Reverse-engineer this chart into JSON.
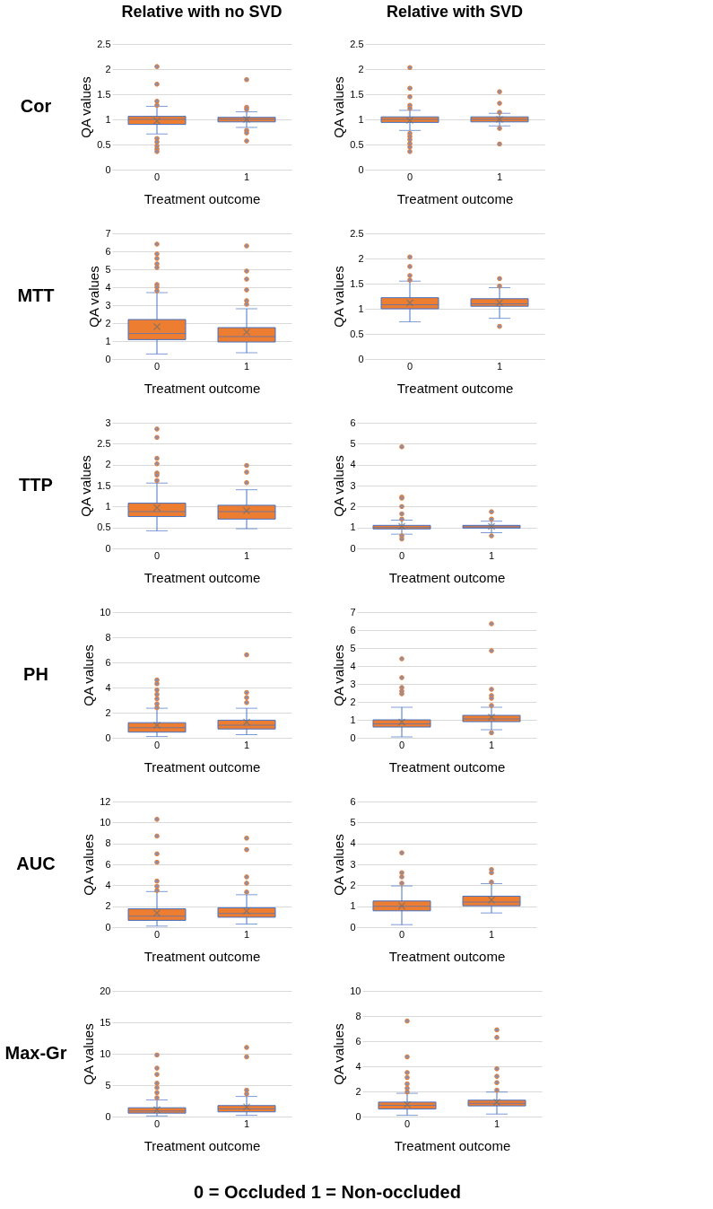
{
  "chart_data": [
    {
      "type": "box",
      "title": "Relative with no SVD",
      "annotations": [
        "Cor"
      ],
      "xlabel": "Treatment outcome",
      "ylabel": "QA values",
      "categories": [
        "0",
        "1"
      ],
      "color": "#ed7d31",
      "ylim": [
        0,
        2.5
      ],
      "yticks": [
        0,
        0.5,
        1,
        1.5,
        2,
        2.5
      ],
      "grid": "y",
      "boxes": [
        {
          "low": 0.71,
          "q1": 0.9,
          "median": 1.0,
          "q3": 1.06,
          "high": 1.26,
          "mean": 0.97,
          "outliers": [
            2.05,
            1.7,
            1.36,
            1.28,
            0.62,
            0.55,
            0.47,
            0.41,
            0.36
          ]
        },
        {
          "low": 0.84,
          "q1": 0.95,
          "median": 1.0,
          "q3": 1.04,
          "high": 1.15,
          "mean": 1.0,
          "outliers": [
            1.79,
            1.24,
            1.2,
            0.78,
            0.73,
            0.57
          ]
        }
      ]
    },
    {
      "type": "box",
      "title": "Relative with SVD",
      "xlabel": "Treatment outcome",
      "ylabel": "QA values",
      "categories": [
        "0",
        "1"
      ],
      "color": "#ed7d31",
      "ylim": [
        0,
        2.5
      ],
      "yticks": [
        0,
        0.5,
        1,
        1.5,
        2,
        2.5
      ],
      "grid": "y",
      "boxes": [
        {
          "low": 0.78,
          "q1": 0.94,
          "median": 1.0,
          "q3": 1.05,
          "high": 1.18,
          "mean": 0.98,
          "outliers": [
            2.03,
            1.62,
            1.45,
            1.28,
            1.22,
            0.72,
            0.66,
            0.6,
            0.52,
            0.45,
            0.36
          ]
        },
        {
          "low": 0.87,
          "q1": 0.95,
          "median": 1.0,
          "q3": 1.05,
          "high": 1.12,
          "mean": 1.0,
          "outliers": [
            1.55,
            1.32,
            1.14,
            0.82,
            0.51
          ]
        }
      ]
    },
    {
      "type": "box",
      "annotations": [
        "MTT"
      ],
      "xlabel": "Treatment outcome",
      "ylabel": "QA values",
      "categories": [
        "0",
        "1"
      ],
      "color": "#ed7d31",
      "ylim": [
        0,
        7
      ],
      "yticks": [
        0,
        1,
        2,
        3,
        4,
        5,
        6,
        7
      ],
      "grid": "y",
      "boxes": [
        {
          "low": 0.28,
          "q1": 1.08,
          "median": 1.42,
          "q3": 2.2,
          "high": 3.7,
          "mean": 1.8,
          "outliers": [
            6.4,
            5.85,
            5.6,
            5.3,
            5.1,
            4.15,
            4.0,
            3.8
          ]
        },
        {
          "low": 0.35,
          "q1": 0.95,
          "median": 1.25,
          "q3": 1.75,
          "high": 2.8,
          "mean": 1.5,
          "outliers": [
            6.3,
            4.9,
            4.45,
            3.85,
            3.25,
            3.05
          ]
        }
      ]
    },
    {
      "type": "box",
      "xlabel": "Treatment outcome",
      "ylabel": "QA values",
      "categories": [
        "0",
        "1"
      ],
      "color": "#ed7d31",
      "ylim": [
        0,
        2.5
      ],
      "yticks": [
        0,
        0.5,
        1,
        1.5,
        2,
        2.5
      ],
      "grid": "y",
      "boxes": [
        {
          "low": 0.74,
          "q1": 1.0,
          "median": 1.08,
          "q3": 1.22,
          "high": 1.55,
          "mean": 1.12,
          "outliers": [
            2.03,
            1.84,
            1.66,
            1.57
          ]
        },
        {
          "low": 0.81,
          "q1": 1.05,
          "median": 1.1,
          "q3": 1.2,
          "high": 1.42,
          "mean": 1.12,
          "outliers": [
            1.6,
            1.45,
            0.65
          ]
        }
      ]
    },
    {
      "type": "box",
      "annotations": [
        "TTP"
      ],
      "xlabel": "Treatment outcome",
      "ylabel": "QA values",
      "categories": [
        "0",
        "1"
      ],
      "color": "#ed7d31",
      "ylim": [
        0,
        3
      ],
      "yticks": [
        0,
        0.5,
        1,
        1.5,
        2,
        2.5,
        3
      ],
      "grid": "y",
      "boxes": [
        {
          "low": 0.42,
          "q1": 0.76,
          "median": 0.88,
          "q3": 1.08,
          "high": 1.56,
          "mean": 0.97,
          "outliers": [
            2.85,
            2.65,
            2.15,
            2.02,
            1.8,
            1.75,
            1.62
          ]
        },
        {
          "low": 0.47,
          "q1": 0.7,
          "median": 0.88,
          "q3": 1.03,
          "high": 1.4,
          "mean": 0.9,
          "outliers": [
            1.98,
            1.82,
            1.57
          ]
        }
      ]
    },
    {
      "type": "box",
      "xlabel": "Treatment outcome",
      "ylabel": "QA values",
      "categories": [
        "0",
        "1"
      ],
      "color": "#ed7d31",
      "ylim": [
        0,
        6
      ],
      "yticks": [
        0,
        1,
        2,
        3,
        4,
        5,
        6
      ],
      "grid": "y",
      "boxes": [
        {
          "low": 0.68,
          "q1": 0.93,
          "median": 1.0,
          "q3": 1.1,
          "high": 1.35,
          "mean": 1.05,
          "outliers": [
            4.85,
            2.45,
            2.4,
            2.0,
            1.65,
            1.4,
            0.6,
            0.45
          ]
        },
        {
          "low": 0.75,
          "q1": 0.97,
          "median": 1.03,
          "q3": 1.1,
          "high": 1.3,
          "mean": 1.05,
          "outliers": [
            1.75,
            1.4,
            0.6
          ]
        }
      ]
    },
    {
      "type": "box",
      "annotations": [
        "PH"
      ],
      "xlabel": "Treatment outcome",
      "ylabel": "QA values",
      "categories": [
        "0",
        "1"
      ],
      "color": "#ed7d31",
      "ylim": [
        0,
        10
      ],
      "yticks": [
        0,
        2,
        4,
        6,
        8,
        10
      ],
      "grid": "y",
      "boxes": [
        {
          "low": 0.1,
          "q1": 0.45,
          "median": 0.8,
          "q3": 1.2,
          "high": 2.35,
          "mean": 1.0,
          "outliers": [
            4.6,
            4.3,
            3.8,
            3.45,
            3.1,
            2.7,
            2.4
          ]
        },
        {
          "low": 0.25,
          "q1": 0.7,
          "median": 1.0,
          "q3": 1.4,
          "high": 2.35,
          "mean": 1.25,
          "outliers": [
            6.6,
            3.6,
            3.2,
            2.8
          ]
        }
      ]
    },
    {
      "type": "box",
      "xlabel": "Treatment outcome",
      "ylabel": "QA values",
      "categories": [
        "0",
        "1"
      ],
      "color": "#ed7d31",
      "ylim": [
        0,
        7
      ],
      "yticks": [
        0,
        1,
        2,
        3,
        4,
        5,
        6,
        7
      ],
      "grid": "y",
      "boxes": [
        {
          "low": 0.05,
          "q1": 0.6,
          "median": 0.78,
          "q3": 1.0,
          "high": 1.7,
          "mean": 0.88,
          "outliers": [
            4.4,
            3.35,
            2.8,
            2.6,
            2.45
          ]
        },
        {
          "low": 0.45,
          "q1": 0.9,
          "median": 1.05,
          "q3": 1.25,
          "high": 1.7,
          "mean": 1.15,
          "outliers": [
            6.35,
            4.85,
            2.7,
            2.35,
            2.2,
            1.8,
            0.28
          ]
        }
      ]
    },
    {
      "type": "box",
      "annotations": [
        "AUC"
      ],
      "xlabel": "Treatment outcome",
      "ylabel": "QA values",
      "categories": [
        "0",
        "1"
      ],
      "color": "#ed7d31",
      "ylim": [
        0,
        12
      ],
      "yticks": [
        0,
        2,
        4,
        6,
        8,
        10,
        12
      ],
      "grid": "y",
      "boxes": [
        {
          "low": 0.1,
          "q1": 0.65,
          "median": 1.05,
          "q3": 1.75,
          "high": 3.4,
          "mean": 1.35,
          "outliers": [
            10.3,
            8.7,
            7.0,
            6.2,
            4.4,
            3.9,
            3.5
          ]
        },
        {
          "low": 0.3,
          "q1": 0.95,
          "median": 1.3,
          "q3": 1.85,
          "high": 3.1,
          "mean": 1.55,
          "outliers": [
            8.5,
            7.4,
            4.8,
            4.2,
            3.35
          ]
        }
      ]
    },
    {
      "type": "box",
      "xlabel": "Treatment outcome",
      "ylabel": "QA values",
      "categories": [
        "0",
        "1"
      ],
      "color": "#ed7d31",
      "ylim": [
        0,
        6
      ],
      "yticks": [
        0,
        1,
        2,
        3,
        4,
        5,
        6
      ],
      "grid": "y",
      "boxes": [
        {
          "low": 0.12,
          "q1": 0.78,
          "median": 1.0,
          "q3": 1.25,
          "high": 1.97,
          "mean": 1.02,
          "outliers": [
            3.55,
            2.6,
            2.4,
            2.1
          ]
        },
        {
          "low": 0.68,
          "q1": 1.02,
          "median": 1.2,
          "q3": 1.48,
          "high": 2.08,
          "mean": 1.3,
          "outliers": [
            2.75,
            2.6,
            2.15
          ]
        }
      ]
    },
    {
      "type": "box",
      "annotations": [
        "Max-Gr",
        "0 = Occluded   1 = Non-occluded"
      ],
      "xlabel": "Treatment outcome",
      "ylabel": "QA values",
      "categories": [
        "0",
        "1"
      ],
      "color": "#ed7d31",
      "ylim": [
        0,
        20
      ],
      "yticks": [
        0,
        5,
        10,
        15,
        20
      ],
      "grid": "y",
      "boxes": [
        {
          "low": 0.1,
          "q1": 0.55,
          "median": 0.9,
          "q3": 1.4,
          "high": 2.65,
          "mean": 1.1,
          "outliers": [
            9.8,
            7.7,
            6.7,
            5.3,
            4.6,
            3.8,
            3.0
          ]
        },
        {
          "low": 0.2,
          "q1": 0.75,
          "median": 1.2,
          "q3": 1.75,
          "high": 3.2,
          "mean": 1.55,
          "outliers": [
            11.0,
            9.5,
            4.2,
            3.6
          ]
        }
      ]
    },
    {
      "type": "box",
      "xlabel": "Treatment outcome",
      "ylabel": "QA values",
      "categories": [
        "0",
        "1"
      ],
      "color": "#ed7d31",
      "ylim": [
        0,
        10
      ],
      "yticks": [
        0,
        2,
        4,
        6,
        8,
        10
      ],
      "grid": "y",
      "boxes": [
        {
          "low": 0.1,
          "q1": 0.6,
          "median": 0.9,
          "q3": 1.15,
          "high": 1.85,
          "mean": 0.95,
          "outliers": [
            7.6,
            4.75,
            3.5,
            3.1,
            2.6,
            2.25,
            1.95
          ]
        },
        {
          "low": 0.2,
          "q1": 0.85,
          "median": 1.05,
          "q3": 1.3,
          "high": 1.95,
          "mean": 1.15,
          "outliers": [
            6.9,
            6.3,
            3.8,
            3.2,
            2.7,
            2.1
          ]
        }
      ]
    }
  ]
}
